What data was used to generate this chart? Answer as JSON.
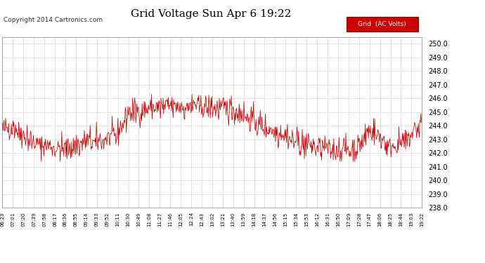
{
  "title": "Grid Voltage Sun Apr 6 19:22",
  "copyright": "Copyright 2014 Cartronics.com",
  "legend_label": "Grid  (AC Volts)",
  "ylim": [
    238.0,
    250.5
  ],
  "yticks": [
    238.0,
    239.0,
    240.0,
    241.0,
    242.0,
    243.0,
    244.0,
    245.0,
    246.0,
    247.0,
    248.0,
    249.0,
    250.0
  ],
  "xtick_labels": [
    "06:23",
    "07:01",
    "07:20",
    "07:39",
    "07:58",
    "08:17",
    "08:36",
    "08:55",
    "09:14",
    "09:33",
    "09:52",
    "10:11",
    "10:30",
    "10:49",
    "11:08",
    "11:27",
    "11:46",
    "12:05",
    "12:24",
    "12:43",
    "13:02",
    "13:21",
    "13:40",
    "13:59",
    "14:18",
    "14:37",
    "14:56",
    "15:15",
    "15:34",
    "15:53",
    "16:12",
    "16:31",
    "16:50",
    "17:09",
    "17:28",
    "17:47",
    "18:06",
    "18:25",
    "18:44",
    "19:03",
    "19:22"
  ],
  "line_color": "#cc0000",
  "bg_color": "#ffffff",
  "grid_color": "#bbbbbb",
  "title_fontsize": 11,
  "copyright_fontsize": 6.5,
  "legend_bg": "#cc0000",
  "legend_fg": "#ffffff",
  "legend_fontsize": 6.5,
  "ytick_fontsize": 7,
  "xtick_fontsize": 5.0
}
